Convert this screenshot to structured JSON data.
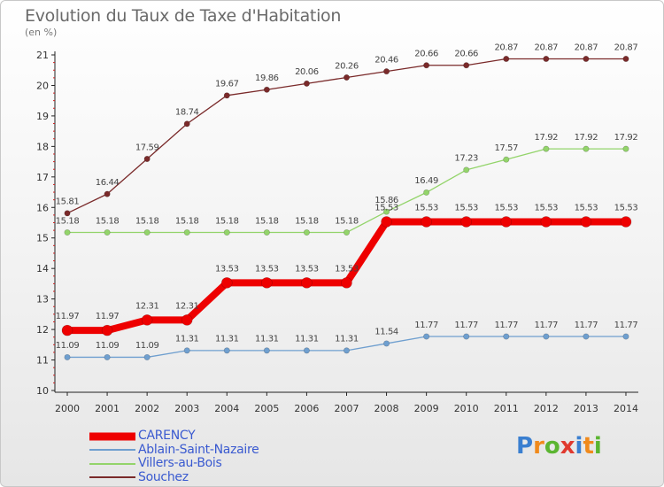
{
  "header": {
    "title": "Evolution du Taux de Taxe d'Habitation",
    "subtitle": "(en %)"
  },
  "logo": {
    "letters": [
      "P",
      "r",
      "o",
      "x",
      "i",
      "t",
      "i"
    ],
    "colors": [
      "#3a7fd0",
      "#f08a1c",
      "#5bb531",
      "#e03a2f",
      "#3a7fd0",
      "#f08a1c",
      "#5bb531"
    ]
  },
  "chart_data": {
    "type": "line",
    "x": [
      "2000",
      "2001",
      "2002",
      "2003",
      "2004",
      "2005",
      "2006",
      "2007",
      "2008",
      "2009",
      "2010",
      "2011",
      "2012",
      "2013",
      "2014"
    ],
    "ylim": [
      10,
      21
    ],
    "yticks": [
      "10",
      "11",
      "12",
      "13",
      "14",
      "15",
      "16",
      "17",
      "18",
      "19",
      "20",
      "21"
    ],
    "grid": false,
    "legend_position": "bottom-left",
    "series": [
      {
        "name": "Souchez",
        "color": "#7a2a2a",
        "values": [
          15.81,
          16.44,
          17.59,
          18.74,
          19.67,
          19.86,
          20.06,
          20.26,
          20.46,
          20.66,
          20.66,
          20.87,
          20.87,
          20.87,
          20.87
        ],
        "labels": [
          "15.81",
          "16.44",
          "17.59",
          "18.74",
          "19.67",
          "19.86",
          "20.06",
          "20.26",
          "20.46",
          "20.66",
          "20.66",
          "20.87",
          "20.87",
          "20.87",
          "20.87"
        ]
      },
      {
        "name": "Villers-au-Bois",
        "color": "#93d46a",
        "values": [
          15.18,
          15.18,
          15.18,
          15.18,
          15.18,
          15.18,
          15.18,
          15.18,
          15.86,
          16.49,
          17.23,
          17.57,
          17.92,
          17.92,
          17.92
        ],
        "labels": [
          "15.18",
          "15.18",
          "15.18",
          "15.18",
          "15.18",
          "15.18",
          "15.18",
          "15.18",
          "15.86",
          "16.49",
          "17.23",
          "17.57",
          "17.92",
          "17.92",
          "17.92"
        ]
      },
      {
        "name": "Ablain-Saint-Nazaire",
        "color": "#6f9fcf",
        "values": [
          11.09,
          11.09,
          11.09,
          11.31,
          11.31,
          11.31,
          11.31,
          11.31,
          11.54,
          11.77,
          11.77,
          11.77,
          11.77,
          11.77,
          11.77
        ],
        "labels": [
          "11.09",
          "11.09",
          "11.09",
          "11.31",
          "11.31",
          "11.31",
          "11.31",
          "11.31",
          "11.54",
          "11.77",
          "11.77",
          "11.77",
          "11.77",
          "11.77",
          "11.77"
        ]
      },
      {
        "name": "CARENCY",
        "color": "#ee0000",
        "values": [
          11.97,
          11.97,
          12.31,
          12.31,
          13.53,
          13.53,
          13.53,
          13.53,
          15.53,
          15.53,
          15.53,
          15.53,
          15.53,
          15.53,
          15.53
        ],
        "labels": [
          "11.97",
          "11.97",
          "12.31",
          "12.31",
          "13.53",
          "13.53",
          "13.53",
          "13.53",
          "15.53",
          "15.53",
          "15.53",
          "15.53",
          "15.53",
          "15.53",
          "15.53"
        ]
      }
    ],
    "legend": [
      {
        "name": "CARENCY",
        "color": "#ee0000",
        "text_color": "#3a5ad0"
      },
      {
        "name": "Ablain-Saint-Nazaire",
        "color": "#6f9fcf",
        "text_color": "#3a5ad0"
      },
      {
        "name": "Villers-au-Bois",
        "color": "#93d46a",
        "text_color": "#3a5ad0"
      },
      {
        "name": "Souchez",
        "color": "#7a2a2a",
        "text_color": "#3a5ad0"
      }
    ]
  }
}
